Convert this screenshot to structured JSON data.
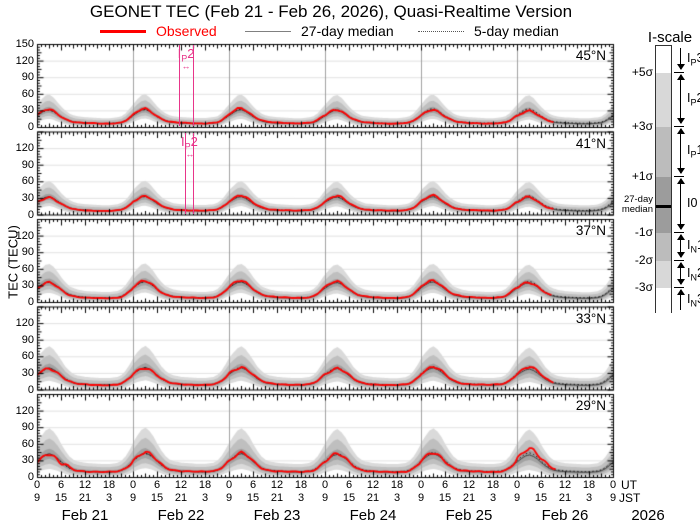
{
  "title": "GEONET TEC (Feb 21 - Feb 26, 2026), Quasi-Realtime Version",
  "legend": {
    "observed": "Observed",
    "median27": "27-day median",
    "median5": "5-day median"
  },
  "colors": {
    "observed": "#ff0000",
    "median27_line": "#3a3a3a",
    "median5_line": "#111111",
    "band_light": "#dadada",
    "band_medium": "#bfbfbf",
    "band_dark": "#a2a2a2",
    "grid": "#e0e0e0",
    "day_line": "#a0a0a0",
    "annotation": "#e8358a",
    "axis": "#000000"
  },
  "chart_data": {
    "type": "line",
    "title": "GEONET TEC (Feb 21 - Feb 26, 2026), Quasi-Realtime Version",
    "ylabel": "TEC (TECU)",
    "series_legend": [
      "Observed",
      "27-day median",
      "5-day median"
    ],
    "x_axis": {
      "span_hours": 144,
      "dates": [
        "Feb 21",
        "Feb 22",
        "Feb 23",
        "Feb 24",
        "Feb 25",
        "Feb 26"
      ],
      "year": "2026",
      "ut_ticks_per_day": [
        "0",
        "6",
        "12",
        "18"
      ],
      "jst_ticks_per_day": [
        "9",
        "15",
        "21",
        "3"
      ],
      "final_ut": "0",
      "final_jst": "9",
      "tz_labels": [
        "UT",
        "JST"
      ]
    },
    "panels": [
      {
        "lat": "45°N",
        "ylim": [
          0,
          150
        ],
        "yticks": [
          150,
          120,
          90,
          60,
          30,
          0
        ],
        "median_profile_24h": [
          [
            0,
            22
          ],
          [
            1,
            27
          ],
          [
            2,
            31
          ],
          [
            3,
            32
          ],
          [
            4,
            29
          ],
          [
            5,
            24
          ],
          [
            6,
            19
          ],
          [
            7,
            15
          ],
          [
            8,
            12
          ],
          [
            9,
            10
          ],
          [
            10,
            9
          ],
          [
            12,
            8
          ],
          [
            14,
            7.5
          ],
          [
            16,
            7
          ],
          [
            18,
            7
          ],
          [
            20,
            8
          ],
          [
            21,
            9
          ],
          [
            22,
            12
          ],
          [
            23,
            17
          ],
          [
            24,
            22
          ]
        ],
        "median_day_scale": [
          1.0,
          1.02,
          1.0,
          0.98,
          1.0,
          0.96
        ],
        "five_day_scale": [
          0.97,
          1.0,
          1.02,
          1.0,
          1.05,
          1.04
        ],
        "observed_day_scale": [
          1.02,
          1.06,
          1.1,
          1.02,
          1.02,
          0.96
        ],
        "sigma_factor": 0.14,
        "sigma_offset": 1.0,
        "wiggle_amp": 1.0,
        "wiggle_phase": 0.3,
        "observed_end_hour": 129,
        "annotation": {
          "pre": "I",
          "sub": "P",
          "post": "2",
          "h1": 35.4,
          "h2": 39.1
        }
      },
      {
        "lat": "41°N",
        "ylim": [
          0,
          150
        ],
        "yticks": [
          120,
          90,
          60,
          30,
          0
        ],
        "median_profile_24h": [
          [
            0,
            24
          ],
          [
            1,
            28
          ],
          [
            2,
            32
          ],
          [
            3,
            33
          ],
          [
            4,
            30
          ],
          [
            5,
            25
          ],
          [
            6,
            20
          ],
          [
            7,
            16
          ],
          [
            8,
            13
          ],
          [
            9,
            11
          ],
          [
            10,
            9.5
          ],
          [
            12,
            8.5
          ],
          [
            14,
            8
          ],
          [
            16,
            7.5
          ],
          [
            18,
            7.5
          ],
          [
            20,
            8.5
          ],
          [
            21,
            10
          ],
          [
            22,
            13
          ],
          [
            23,
            18
          ],
          [
            24,
            24
          ]
        ],
        "median_day_scale": [
          1.0,
          1.02,
          1.0,
          0.98,
          1.0,
          0.96
        ],
        "five_day_scale": [
          0.97,
          1.0,
          1.02,
          1.0,
          1.05,
          1.04
        ],
        "observed_day_scale": [
          0.98,
          1.05,
          1.08,
          1.05,
          1.06,
          0.98
        ],
        "sigma_factor": 0.14,
        "sigma_offset": 1.0,
        "wiggle_amp": 1.0,
        "wiggle_phase": 1.7,
        "observed_end_hour": 129,
        "annotation": {
          "pre": "I",
          "sub": "P",
          "post": "2",
          "h1": 37.1,
          "h2": 39.1
        }
      },
      {
        "lat": "37°N",
        "ylim": [
          0,
          150
        ],
        "yticks": [
          120,
          90,
          60,
          30,
          0
        ],
        "median_profile_24h": [
          [
            0,
            27
          ],
          [
            1,
            32
          ],
          [
            2,
            36
          ],
          [
            3,
            37
          ],
          [
            4,
            34
          ],
          [
            5,
            29
          ],
          [
            6,
            23
          ],
          [
            7,
            18
          ],
          [
            8,
            14
          ],
          [
            9,
            12
          ],
          [
            10,
            10.5
          ],
          [
            12,
            9
          ],
          [
            14,
            8.5
          ],
          [
            16,
            8
          ],
          [
            18,
            8
          ],
          [
            20,
            9
          ],
          [
            21,
            11
          ],
          [
            22,
            15
          ],
          [
            23,
            21
          ],
          [
            24,
            27
          ]
        ],
        "median_day_scale": [
          1.0,
          1.02,
          1.0,
          0.97,
          1.0,
          0.96
        ],
        "five_day_scale": [
          0.97,
          1.0,
          1.02,
          1.0,
          1.05,
          1.03
        ],
        "observed_day_scale": [
          0.96,
          1.04,
          1.06,
          1.03,
          1.08,
          1.0
        ],
        "sigma_factor": 0.15,
        "sigma_offset": 1.0,
        "wiggle_amp": 1.2,
        "wiggle_phase": 2.9,
        "observed_end_hour": 128.5,
        "annotation": null
      },
      {
        "lat": "33°N",
        "ylim": [
          0,
          150
        ],
        "yticks": [
          120,
          90,
          60,
          30,
          0
        ],
        "median_profile_24h": [
          [
            0,
            29
          ],
          [
            1,
            34
          ],
          [
            2,
            38
          ],
          [
            3,
            40
          ],
          [
            4,
            37
          ],
          [
            5,
            32
          ],
          [
            6,
            26
          ],
          [
            7,
            20
          ],
          [
            8,
            16
          ],
          [
            9,
            13
          ],
          [
            10,
            11.5
          ],
          [
            12,
            10
          ],
          [
            14,
            9.5
          ],
          [
            16,
            9
          ],
          [
            18,
            9
          ],
          [
            20,
            10
          ],
          [
            21,
            12
          ],
          [
            22,
            16
          ],
          [
            23,
            22
          ],
          [
            24,
            29
          ]
        ],
        "median_day_scale": [
          1.0,
          1.02,
          1.0,
          0.97,
          1.0,
          0.95
        ],
        "five_day_scale": [
          0.97,
          1.0,
          1.02,
          1.0,
          1.05,
          1.03
        ],
        "observed_day_scale": [
          0.98,
          1.02,
          1.05,
          1.0,
          1.06,
          1.05
        ],
        "sigma_factor": 0.17,
        "sigma_offset": 1.0,
        "wiggle_amp": 1.4,
        "wiggle_phase": 4.1,
        "observed_end_hour": 129,
        "annotation": null
      },
      {
        "lat": "29°N",
        "ylim": [
          0,
          150
        ],
        "yticks": [
          120,
          90,
          60,
          30,
          0
        ],
        "median_profile_24h": [
          [
            0,
            30
          ],
          [
            1,
            36
          ],
          [
            2,
            41
          ],
          [
            3,
            43
          ],
          [
            4,
            40
          ],
          [
            5,
            35
          ],
          [
            6,
            28
          ],
          [
            7,
            22
          ],
          [
            8,
            17
          ],
          [
            9,
            14
          ],
          [
            10,
            12.5
          ],
          [
            12,
            11
          ],
          [
            14,
            10.5
          ],
          [
            16,
            10
          ],
          [
            18,
            10
          ],
          [
            20,
            11
          ],
          [
            21,
            13
          ],
          [
            22,
            17
          ],
          [
            23,
            23
          ],
          [
            24,
            30
          ]
        ],
        "median_day_scale": [
          1.0,
          1.03,
          1.0,
          0.97,
          1.0,
          0.95
        ],
        "five_day_scale": [
          0.97,
          1.0,
          1.02,
          1.0,
          1.05,
          1.03
        ],
        "observed_day_scale": [
          1.0,
          1.06,
          1.02,
          0.98,
          1.02,
          1.15
        ],
        "sigma_factor": 0.19,
        "sigma_offset": 1.0,
        "wiggle_amp": 1.8,
        "wiggle_phase": 5.3,
        "observed_end_hour": 129.5,
        "annotation": null
      }
    ],
    "observed_anomalies": [
      {
        "panel": 4,
        "hour": 5.5,
        "dv": -6,
        "w": 1.2
      },
      {
        "panel": 4,
        "hour": 7.2,
        "dv": 3,
        "w": 1.0
      },
      {
        "panel": 4,
        "hour": 124,
        "dv": 4,
        "w": 1.5
      },
      {
        "panel": 4,
        "hour": 127,
        "dv": 3,
        "w": 1.2
      }
    ],
    "sigma_band_model": {
      "light_band": "+5σ to +3σ and -2σ to -3σ",
      "medium_band": "+3σ to +1σ and -1σ to -2σ",
      "dark_band": "+1σ to -1σ"
    }
  },
  "iscale": {
    "title": "I-scale",
    "boundaries": [
      "+5σ",
      "+3σ",
      "+1σ",
      "-1σ",
      "-2σ",
      "-3σ"
    ],
    "median_label_lines": [
      "27-day",
      "median"
    ],
    "zones": [
      {
        "pre": "I",
        "sub": "P",
        "post": "3",
        "band": "white",
        "arrow": "down"
      },
      {
        "pre": "I",
        "sub": "P",
        "post": "2",
        "band": "light",
        "arrow": "both"
      },
      {
        "pre": "I",
        "sub": "P",
        "post": "1",
        "band": "medium",
        "arrow": "both"
      },
      {
        "pre": "I",
        "sub": "",
        "post": "0",
        "band": "dark",
        "arrow": "both"
      },
      {
        "pre": "I",
        "sub": "N",
        "post": "1",
        "band": "medium",
        "arrow": "both"
      },
      {
        "pre": "I",
        "sub": "N",
        "post": "2",
        "band": "light",
        "arrow": "both"
      },
      {
        "pre": "I",
        "sub": "N",
        "post": "3",
        "band": "white",
        "arrow": "up"
      }
    ],
    "band_colors": {
      "white": "#ffffff",
      "light": "#d8d8d8",
      "medium": "#bcbcbc",
      "dark": "#9c9c9c"
    }
  }
}
